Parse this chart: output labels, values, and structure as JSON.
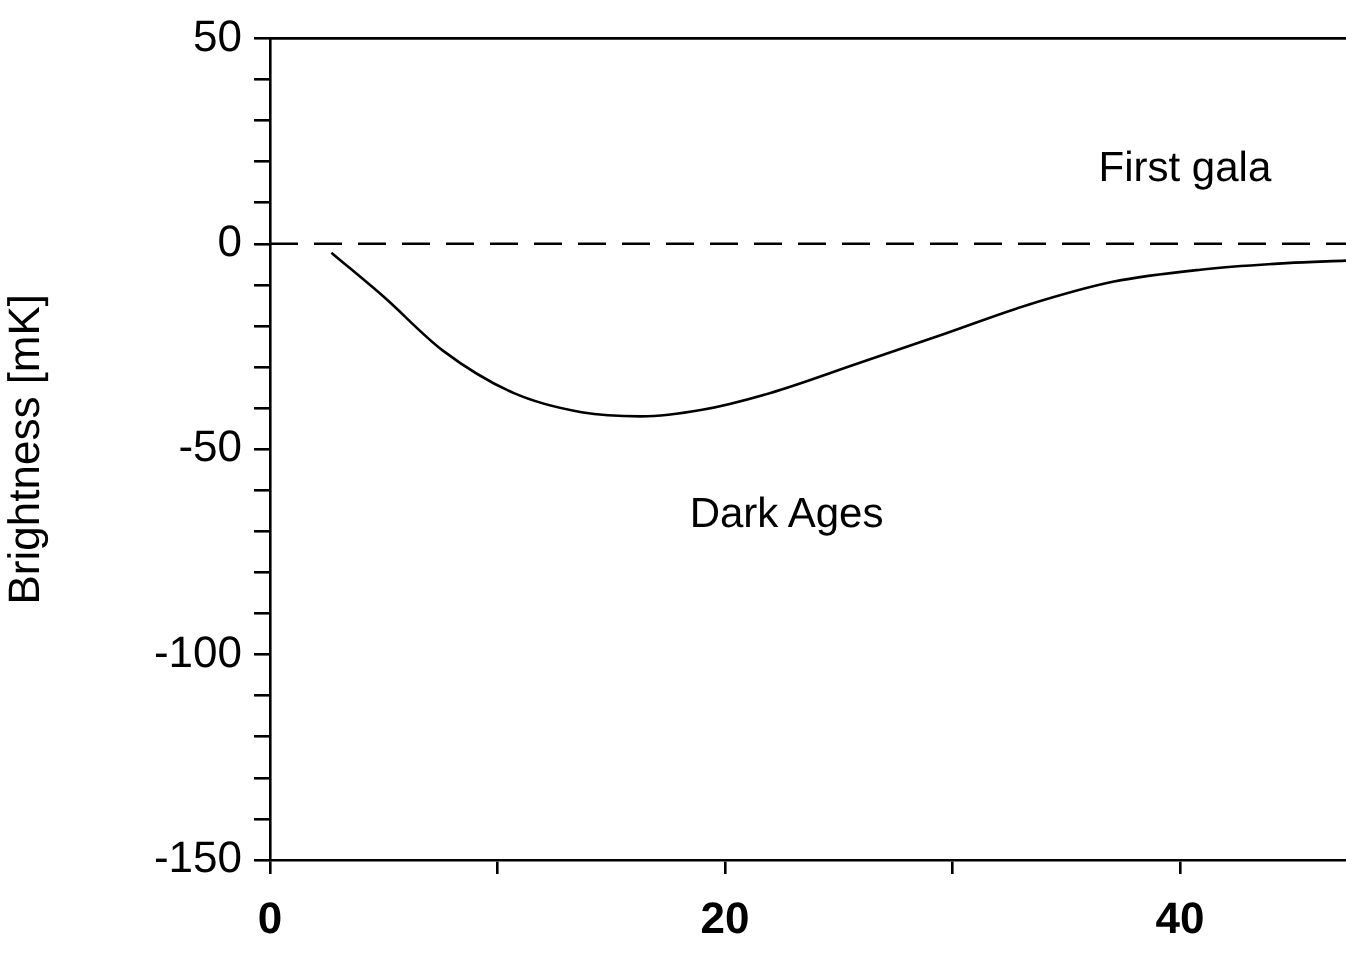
{
  "chart_data": {
    "type": "line",
    "ylabel": "Brightness [mK]",
    "x": [
      2.7,
      5.0,
      7.6,
      10.7,
      13.7,
      16.3,
      19.0,
      22.0,
      25.8,
      29.6,
      33.3,
      37.1,
      40.9,
      44.7,
      47.3
    ],
    "series": [
      {
        "color": "#000000",
        "values": [
          -2.2,
          -12.9,
          -26,
          -36.3,
          -41,
          -42,
          -40.4,
          -36.3,
          -29.2,
          -22,
          -14.9,
          -9.2,
          -6.3,
          -4.7,
          -4.1
        ]
      }
    ],
    "xlim": [
      0,
      47.3
    ],
    "xticks": [
      0,
      {
        "value": 10,
        "label": null
      },
      20,
      {
        "value": 30,
        "label": null
      },
      40
    ],
    "ylim": [
      -150,
      50
    ],
    "yticks": [
      -150,
      {
        "value": -140,
        "label": null
      },
      {
        "value": -130,
        "label": null
      },
      {
        "value": -120,
        "label": null
      },
      {
        "value": -110,
        "label": null
      },
      -100,
      {
        "value": -90,
        "label": null
      },
      {
        "value": -80,
        "label": null
      },
      {
        "value": -70,
        "label": null
      },
      {
        "value": -60,
        "label": null
      },
      -50,
      {
        "value": -40,
        "label": null
      },
      {
        "value": -30,
        "label": null
      },
      {
        "value": -20,
        "label": null
      },
      {
        "value": -10,
        "label": null
      },
      0,
      {
        "value": 10,
        "label": null
      },
      {
        "value": 20,
        "label": null
      },
      {
        "value": 30,
        "label": null
      },
      {
        "value": 40,
        "label": null
      },
      50
    ],
    "ref_lines": [
      {
        "axis": "y",
        "value": 0,
        "color": "#000000",
        "line_style": "dashed"
      }
    ],
    "annotations": [
      "Dark Ages",
      "First gala"
    ],
    "grid": false,
    "legend": false,
    "marker": "none",
    "line_style": "solid"
  }
}
